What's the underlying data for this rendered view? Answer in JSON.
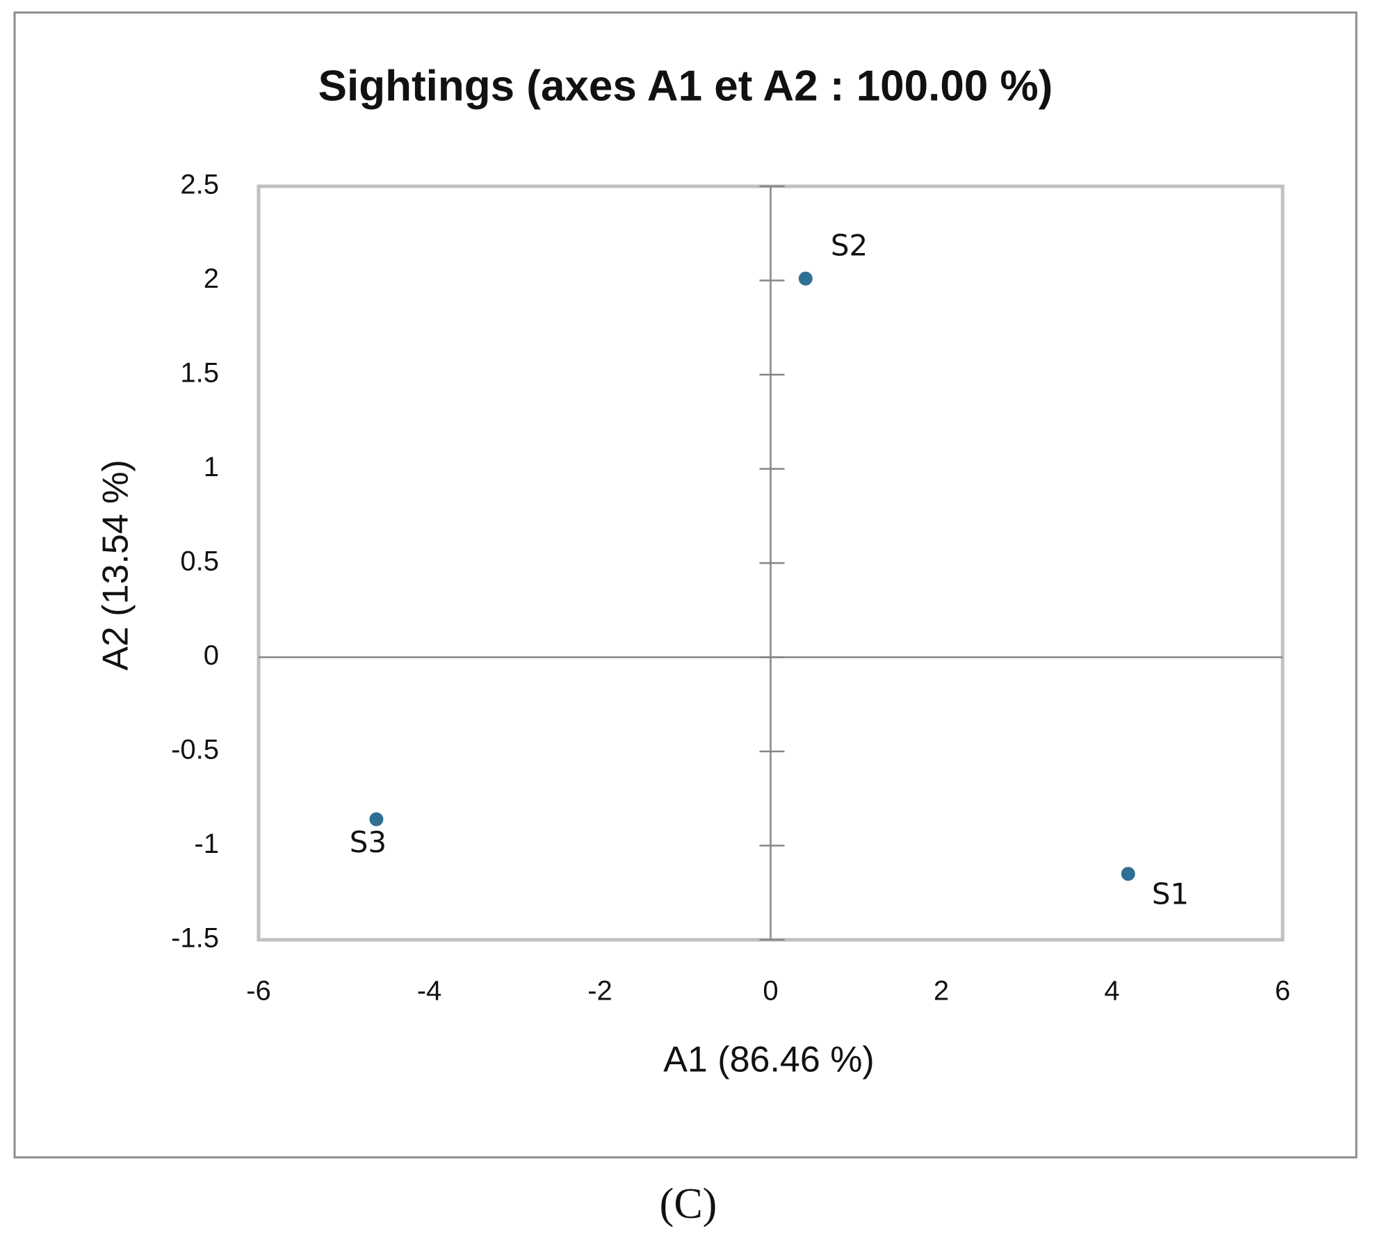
{
  "chart_data": {
    "type": "scatter",
    "title": "Sightings (axes A1 et A2 : 100.00 %)",
    "x_label": "A1 (86.46 %)",
    "y_label": "A2 (13.54 %)",
    "x": [
      4.19,
      0.41,
      -4.62
    ],
    "values": [
      -1.15,
      2.01,
      -0.86
    ],
    "labels": [
      "S1",
      "S2",
      "S3"
    ],
    "color": "#2f6f93",
    "xlim": [
      -6,
      6
    ],
    "xticks": [
      -6,
      -4,
      -2,
      0,
      2,
      4,
      6
    ],
    "ylim": [
      -1.5,
      2.5
    ],
    "yticks": [
      -1.5,
      -1,
      -0.5,
      0,
      0.5,
      1,
      1.5,
      2,
      2.5
    ],
    "caption": "(C)"
  }
}
